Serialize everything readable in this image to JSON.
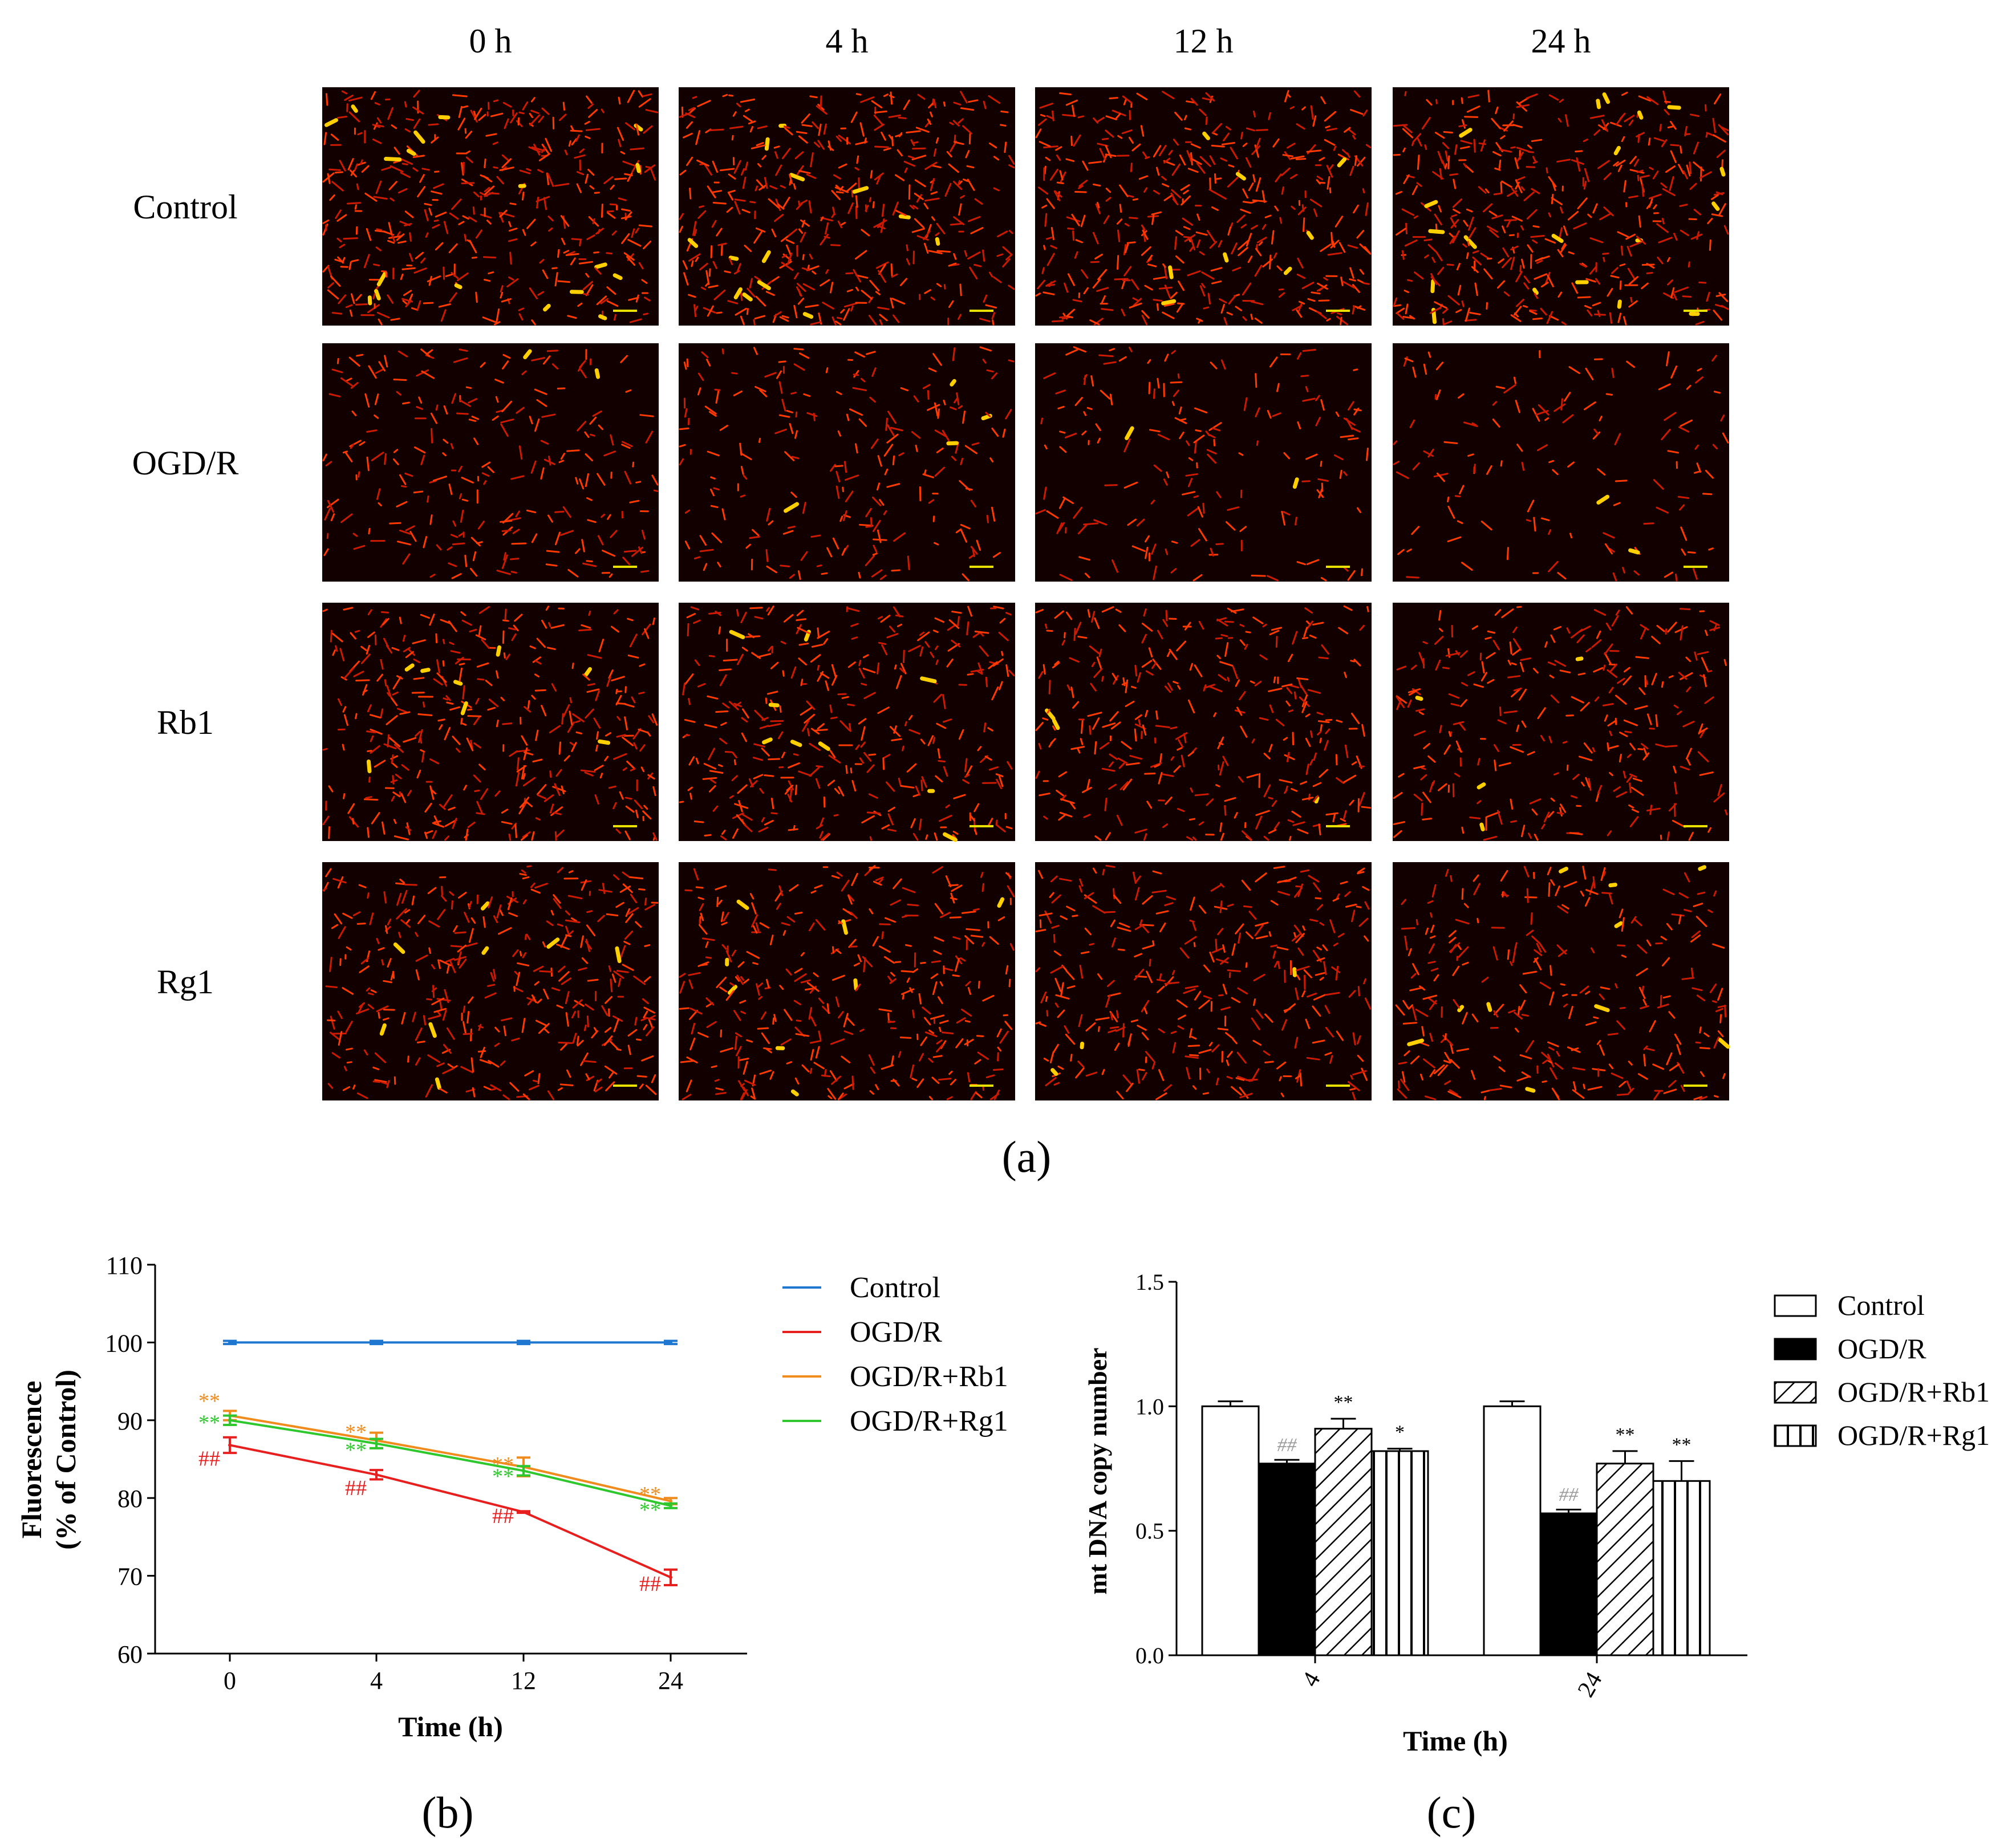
{
  "figure": {
    "panel_a": {
      "label": "(a)",
      "columns": [
        "0 h",
        "4 h",
        "12 h",
        "24 h"
      ],
      "rows": [
        "Control",
        "OGD/R",
        "Rb1",
        "Rg1"
      ],
      "brightness": [
        [
          1.0,
          1.0,
          1.0,
          1.0
        ],
        [
          0.55,
          0.5,
          0.4,
          0.3
        ],
        [
          0.85,
          0.8,
          0.75,
          0.65
        ],
        [
          0.85,
          0.8,
          0.75,
          0.65
        ]
      ],
      "colors": {
        "dark": "#120000",
        "mid": "#cc1a00",
        "bright": "#ff3a00",
        "hot": "#ffd000",
        "scale_bar": "#e8e000"
      }
    },
    "panel_b": {
      "label": "(b)"
    },
    "panel_c": {
      "label": "(c)"
    }
  },
  "chart_data": [
    {
      "type": "line",
      "xlabel": "Time (h)",
      "ylabel_lines": [
        "Fluorescence",
        "(% of Control)"
      ],
      "x": [
        0,
        4,
        12,
        24
      ],
      "x_ticks": [
        "0",
        "4",
        "12",
        "24"
      ],
      "ylim": [
        60,
        110
      ],
      "y_ticks": [
        "60",
        "70",
        "80",
        "90",
        "100",
        "110"
      ],
      "legend_position": "right",
      "series": [
        {
          "name": "Control",
          "color": "#1f77d0",
          "values": [
            100,
            100,
            100,
            100
          ],
          "errors": [
            0.2,
            0.2,
            0.2,
            0.2
          ]
        },
        {
          "name": "OGD/R",
          "color": "#e81f1f",
          "values": [
            86.8,
            83.0,
            78.2,
            69.8
          ],
          "errors": [
            1.0,
            0.6,
            0.1,
            1.0
          ]
        },
        {
          "name": "OGD/R+Rb1",
          "color": "#f08c1e",
          "values": [
            90.6,
            87.4,
            84.0,
            79.6
          ],
          "errors": [
            0.6,
            1.0,
            1.2,
            0.4
          ]
        },
        {
          "name": "OGD/R+Rg1",
          "color": "#2ec82e",
          "values": [
            90.0,
            87.0,
            83.5,
            79.0
          ],
          "errors": [
            0.6,
            0.6,
            0.6,
            0.3
          ]
        }
      ],
      "annotations": [
        {
          "text": "**",
          "series": "OGD/R+Rb1",
          "x": 0,
          "y": 92.6
        },
        {
          "text": "**",
          "series": "OGD/R+Rg1",
          "x": 0,
          "y": 89.8
        },
        {
          "text": "##",
          "series": "OGD/R",
          "x": 0,
          "y": 85.2
        },
        {
          "text": "**",
          "series": "OGD/R+Rb1",
          "x": 4,
          "y": 88.6
        },
        {
          "text": "**",
          "series": "OGD/R+Rg1",
          "x": 4,
          "y": 86.3
        },
        {
          "text": "##",
          "series": "OGD/R",
          "x": 4,
          "y": 81.4
        },
        {
          "text": "**",
          "series": "OGD/R+Rb1",
          "x": 12,
          "y": 84.4
        },
        {
          "text": "**",
          "series": "OGD/R+Rg1",
          "x": 12,
          "y": 82.9
        },
        {
          "text": "##",
          "series": "OGD/R",
          "x": 12,
          "y": 77.8
        },
        {
          "text": "**",
          "series": "OGD/R+Rb1",
          "x": 24,
          "y": 80.6
        },
        {
          "text": "**",
          "series": "OGD/R+Rg1",
          "x": 24,
          "y": 78.6
        },
        {
          "text": "##",
          "series": "OGD/R",
          "x": 24,
          "y": 69.1
        }
      ]
    },
    {
      "type": "bar",
      "xlabel": "Time (h)",
      "ylabel": "mt DNA copy number",
      "categories": [
        "4",
        "24"
      ],
      "ylim": [
        0,
        1.5
      ],
      "y_ticks": [
        "0.0",
        "0.5",
        "1.0",
        "1.5"
      ],
      "legend_position": "right",
      "series": [
        {
          "name": "Control",
          "fill": "white",
          "values": [
            1.0,
            1.0
          ],
          "errors": [
            0.02,
            0.02
          ],
          "marks": [
            "",
            ""
          ]
        },
        {
          "name": "OGD/R",
          "fill": "black",
          "values": [
            0.77,
            0.57
          ],
          "errors": [
            0.015,
            0.015
          ],
          "marks": [
            "##",
            "##"
          ]
        },
        {
          "name": "OGD/R+Rb1",
          "fill": "diagonal",
          "values": [
            0.91,
            0.77
          ],
          "errors": [
            0.04,
            0.05
          ],
          "marks": [
            "**",
            "**"
          ]
        },
        {
          "name": "OGD/R+Rg1",
          "fill": "vertical",
          "values": [
            0.82,
            0.7
          ],
          "errors": [
            0.01,
            0.08
          ],
          "marks": [
            "*",
            "**"
          ]
        }
      ]
    }
  ]
}
